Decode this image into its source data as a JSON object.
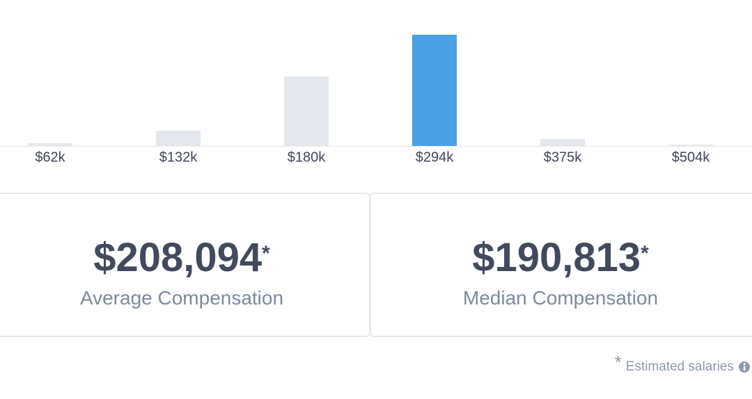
{
  "chart_data": {
    "type": "bar",
    "categories": [
      "$62k",
      "$132k",
      "$180k",
      "$294k",
      "$375k",
      "$504k"
    ],
    "values": [
      4,
      22,
      100,
      160,
      10,
      2
    ],
    "colors": [
      "#e4e8ec",
      "#e4e8ec",
      "#e4e8ec",
      "#4aa0e0",
      "#e4e8ec",
      "#e4e8ec"
    ]
  },
  "stats": [
    {
      "value": "$208,094",
      "marker": "*",
      "label": "Average Compensation"
    },
    {
      "value": "$190,813",
      "marker": "*",
      "label": "Median Compensation"
    }
  ],
  "footnote": {
    "marker": "*",
    "text": "Estimated salaries"
  }
}
